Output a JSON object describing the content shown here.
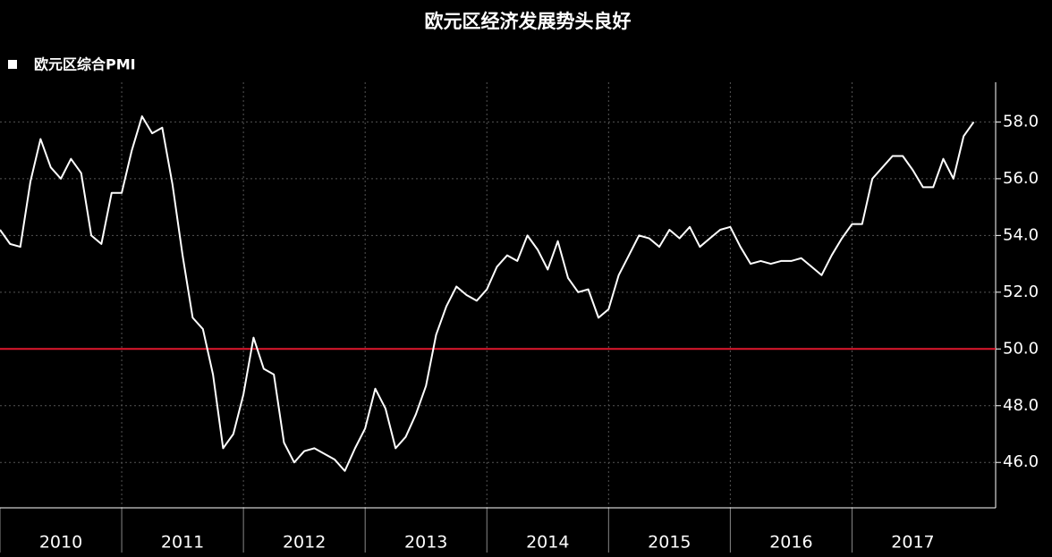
{
  "chart_data": {
    "type": "line",
    "title": "欧元区经济发展势头良好",
    "x": [
      2010,
      2010.083,
      2010.167,
      2010.25,
      2010.333,
      2010.417,
      2010.5,
      2010.583,
      2010.667,
      2010.75,
      2010.833,
      2010.917,
      2011,
      2011.083,
      2011.167,
      2011.25,
      2011.333,
      2011.417,
      2011.5,
      2011.583,
      2011.667,
      2011.75,
      2011.833,
      2011.917,
      2012,
      2012.083,
      2012.167,
      2012.25,
      2012.333,
      2012.417,
      2012.5,
      2012.583,
      2012.667,
      2012.75,
      2012.833,
      2012.917,
      2013,
      2013.083,
      2013.167,
      2013.25,
      2013.333,
      2013.417,
      2013.5,
      2013.583,
      2013.667,
      2013.75,
      2013.833,
      2013.917,
      2014,
      2014.083,
      2014.167,
      2014.25,
      2014.333,
      2014.417,
      2014.5,
      2014.583,
      2014.667,
      2014.75,
      2014.833,
      2014.917,
      2015,
      2015.083,
      2015.167,
      2015.25,
      2015.333,
      2015.417,
      2015.5,
      2015.583,
      2015.667,
      2015.75,
      2015.833,
      2015.917,
      2016,
      2016.083,
      2016.167,
      2016.25,
      2016.333,
      2016.417,
      2016.5,
      2016.583,
      2016.667,
      2016.75,
      2016.833,
      2016.917,
      2017,
      2017.083,
      2017.167,
      2017.25,
      2017.333,
      2017.417,
      2017.5,
      2017.583,
      2017.667,
      2017.75,
      2017.833,
      2017.917,
      2018
    ],
    "series": [
      {
        "name": "欧元区综合PMI",
        "color": "#ffffff",
        "values": [
          54.2,
          53.7,
          53.6,
          55.9,
          57.4,
          56.4,
          56.0,
          56.7,
          56.2,
          54.0,
          53.7,
          55.5,
          55.5,
          57.0,
          58.2,
          57.6,
          57.8,
          55.8,
          53.3,
          51.1,
          50.7,
          49.1,
          46.5,
          47.0,
          48.4,
          50.4,
          49.3,
          49.1,
          46.7,
          46.0,
          46.4,
          46.5,
          46.3,
          46.1,
          45.7,
          46.5,
          47.2,
          48.6,
          47.9,
          46.5,
          46.9,
          47.7,
          48.7,
          50.5,
          51.5,
          52.2,
          51.9,
          51.7,
          52.1,
          52.9,
          53.3,
          53.1,
          54.0,
          53.5,
          52.8,
          53.8,
          52.5,
          52.0,
          52.1,
          51.1,
          51.4,
          52.6,
          53.3,
          54.0,
          53.9,
          53.6,
          54.2,
          53.9,
          54.3,
          53.6,
          53.9,
          54.2,
          54.3,
          53.6,
          53.0,
          53.1,
          53.0,
          53.1,
          53.1,
          53.2,
          52.9,
          52.6,
          53.3,
          53.9,
          54.4,
          54.4,
          56.0,
          56.4,
          56.8,
          56.8,
          56.3,
          55.7,
          55.7,
          56.7,
          56.0,
          57.5,
          58.0
        ]
      }
    ],
    "xlim": [
      2010,
      2018.18
    ],
    "xticks": [
      2010,
      2011,
      2012,
      2013,
      2014,
      2015,
      2016,
      2017
    ],
    "ylim": [
      44.4,
      59.4
    ],
    "yticks": [
      {
        "value": 46,
        "label": "46.0"
      },
      {
        "value": 48,
        "label": "48.0"
      },
      {
        "value": 50,
        "label": "50.0"
      },
      {
        "value": 52,
        "label": "52.0"
      },
      {
        "value": 54,
        "label": "54.0"
      },
      {
        "value": 56,
        "label": "56.0"
      },
      {
        "value": 58,
        "label": "58.0"
      }
    ],
    "reference_line": {
      "value": 50,
      "color": "#e0182d"
    },
    "grid": true
  }
}
